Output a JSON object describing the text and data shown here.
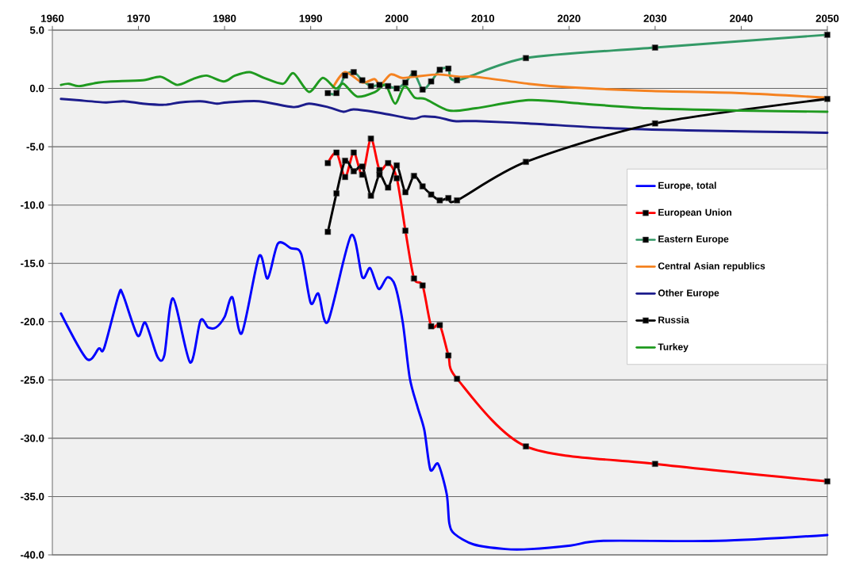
{
  "chart_data": {
    "type": "line",
    "xlim": [
      1960,
      2050
    ],
    "ylim": [
      -40,
      5
    ],
    "xticks": [
      1960,
      1970,
      1980,
      1990,
      2000,
      2010,
      2020,
      2030,
      2040,
      2050
    ],
    "yticks": [
      {
        "value": 5,
        "label": "5.0"
      },
      {
        "value": 0,
        "label": "0.0"
      },
      {
        "value": -5,
        "label": "-5.0"
      },
      {
        "value": -10,
        "label": "-10.0"
      },
      {
        "value": -15,
        "label": "-15.0"
      },
      {
        "value": -20,
        "label": "-20.0"
      },
      {
        "value": -25,
        "label": "-25.0"
      },
      {
        "value": -30,
        "label": "-30.0"
      },
      {
        "value": -35,
        "label": "-35.0"
      },
      {
        "value": -40,
        "label": "-40.0"
      }
    ],
    "grid": "y",
    "legend": "right",
    "series": [
      {
        "name": "Europe, total",
        "color": "#0000ff",
        "x": [
          1961,
          1964,
          1965.4,
          1966,
          1967.7,
          1968.2,
          1969.9,
          1970.8,
          1972.2,
          1973,
          1974,
          1976,
          1977.2,
          1978.1,
          1979,
          1980,
          1980.9,
          1982,
          1984,
          1985,
          1986.2,
          1987.7,
          1988.9,
          1990,
          1990.9,
          1992,
          1994.7,
          1996,
          1996.9,
          1997.9,
          1998.9,
          1999.8,
          2000.7,
          2001.5,
          2002.4,
          2003.2,
          2003.9,
          2004.8,
          2005.8,
          2006.1,
          2006.7,
          2008.9,
          2012.6,
          2015.6,
          2020.2,
          2024,
          2037.4,
          2050
        ],
        "values": [
          -19.3,
          -23.2,
          -22.3,
          -22.3,
          -17.7,
          -17.7,
          -21.2,
          -20.1,
          -23.0,
          -22.9,
          -18.0,
          -23.5,
          -19.9,
          -20.5,
          -20.5,
          -19.6,
          -17.9,
          -21.0,
          -14.4,
          -16.3,
          -13.3,
          -13.7,
          -14.2,
          -18.4,
          -17.6,
          -20.0,
          -12.6,
          -16.2,
          -15.4,
          -17.2,
          -16.2,
          -16.9,
          -20.1,
          -24.8,
          -27.3,
          -29.3,
          -32.7,
          -32.2,
          -34.8,
          -37.3,
          -38.2,
          -39.1,
          -39.5,
          -39.5,
          -39.2,
          -38.8,
          -38.8,
          -38.3
        ]
      },
      {
        "name": "European Union",
        "color": "#ff0000",
        "marker": "square",
        "x": [
          1992,
          1993,
          1994,
          1995,
          1996,
          1997,
          1998,
          1999,
          2000,
          2001,
          2002,
          2003,
          2004,
          2005,
          2006,
          2007,
          2015,
          2030,
          2050
        ],
        "values": [
          -6.4,
          -5.5,
          -7.6,
          -5.5,
          -7.4,
          -4.3,
          -7.0,
          -6.4,
          -7.7,
          -12.2,
          -16.3,
          -16.9,
          -20.4,
          -20.3,
          -22.9,
          -24.9,
          -30.7,
          -32.2,
          -33.7
        ]
      },
      {
        "name": "Eastern Europe",
        "color": "#339966",
        "marker": "square",
        "x": [
          1992,
          1993,
          1994,
          1995,
          1996,
          1997,
          1998,
          1999,
          2000,
          2001,
          2002,
          2003,
          2004,
          2005,
          2006,
          2007,
          2015,
          2030,
          2050
        ],
        "values": [
          -0.4,
          -0.4,
          1.1,
          1.4,
          0.7,
          0.2,
          0.3,
          0.2,
          0.0,
          0.5,
          1.3,
          -0.1,
          0.6,
          1.6,
          1.7,
          0.7,
          2.6,
          3.5,
          4.6
        ]
      },
      {
        "name": "Central Asian republics",
        "color": "#f58220",
        "x": [
          1992.6,
          1994,
          1996,
          1997.4,
          1998.1,
          1999.3,
          2000.6,
          2002,
          2004.8,
          2007.3,
          2009.2,
          2015.3,
          2019.9,
          2028.8,
          2039.8,
          2050
        ],
        "values": [
          0.1,
          1.4,
          0.5,
          0.8,
          0.3,
          1.2,
          0.9,
          1.0,
          1.2,
          1.0,
          1.0,
          0.4,
          0.1,
          -0.2,
          -0.4,
          -0.8
        ]
      },
      {
        "name": "Other Europe",
        "color": "#1c1c8c",
        "x": [
          1961,
          1962.8,
          1966.2,
          1968.3,
          1970.5,
          1973,
          1974.8,
          1977.2,
          1979.1,
          1980.3,
          1984,
          1988,
          1989.8,
          1992,
          1993.8,
          1995,
          1998.1,
          2001.8,
          2003,
          2004.9,
          2006.7,
          2009.2,
          2015.3,
          2024.5,
          2033.7,
          2050
        ],
        "values": [
          -0.9,
          -1.0,
          -1.2,
          -1.1,
          -1.3,
          -1.4,
          -1.2,
          -1.1,
          -1.3,
          -1.2,
          -1.1,
          -1.6,
          -1.3,
          -1.6,
          -2.0,
          -1.8,
          -2.1,
          -2.6,
          -2.4,
          -2.5,
          -2.8,
          -2.8,
          -3.0,
          -3.4,
          -3.6,
          -3.8
        ]
      },
      {
        "name": "Russia",
        "color": "#000000",
        "marker": "square",
        "x": [
          1992,
          1993,
          1994,
          1995,
          1996,
          1997,
          1998,
          1999,
          2000,
          2001,
          2002,
          2003,
          2004,
          2005,
          2006,
          2007,
          2015,
          2030,
          2050
        ],
        "values": [
          -12.3,
          -9.0,
          -6.2,
          -7.1,
          -6.7,
          -9.2,
          -7.4,
          -8.5,
          -6.6,
          -8.9,
          -7.5,
          -8.4,
          -9.1,
          -9.6,
          -9.4,
          -9.6,
          -6.3,
          -3.0,
          -0.9
        ]
      },
      {
        "name": "Turkey",
        "color": "#1f9a1f",
        "x": [
          1961,
          1961.9,
          1963.1,
          1965.3,
          1966.8,
          1970.5,
          1972.6,
          1974.5,
          1976.3,
          1977.9,
          1979.9,
          1981.2,
          1982.9,
          1984.6,
          1986.8,
          1988,
          1989.8,
          1991.4,
          1992.9,
          1993.8,
          1995.4,
          1997.5,
          1998.7,
          1999.8,
          2000.9,
          2002.1,
          2003.3,
          2006.1,
          2009.2,
          2015.3,
          2021.4,
          2029.1,
          2039.9,
          2050
        ],
        "values": [
          0.3,
          0.4,
          0.2,
          0.5,
          0.6,
          0.7,
          1.0,
          0.3,
          0.8,
          1.1,
          0.6,
          1.1,
          1.4,
          0.9,
          0.4,
          1.3,
          -0.3,
          0.9,
          0.0,
          0.4,
          -0.7,
          -0.3,
          0.3,
          -1.3,
          0.2,
          -0.8,
          -0.9,
          -1.9,
          -1.7,
          -1.0,
          -1.3,
          -1.7,
          -1.9,
          -2.0
        ]
      }
    ]
  }
}
